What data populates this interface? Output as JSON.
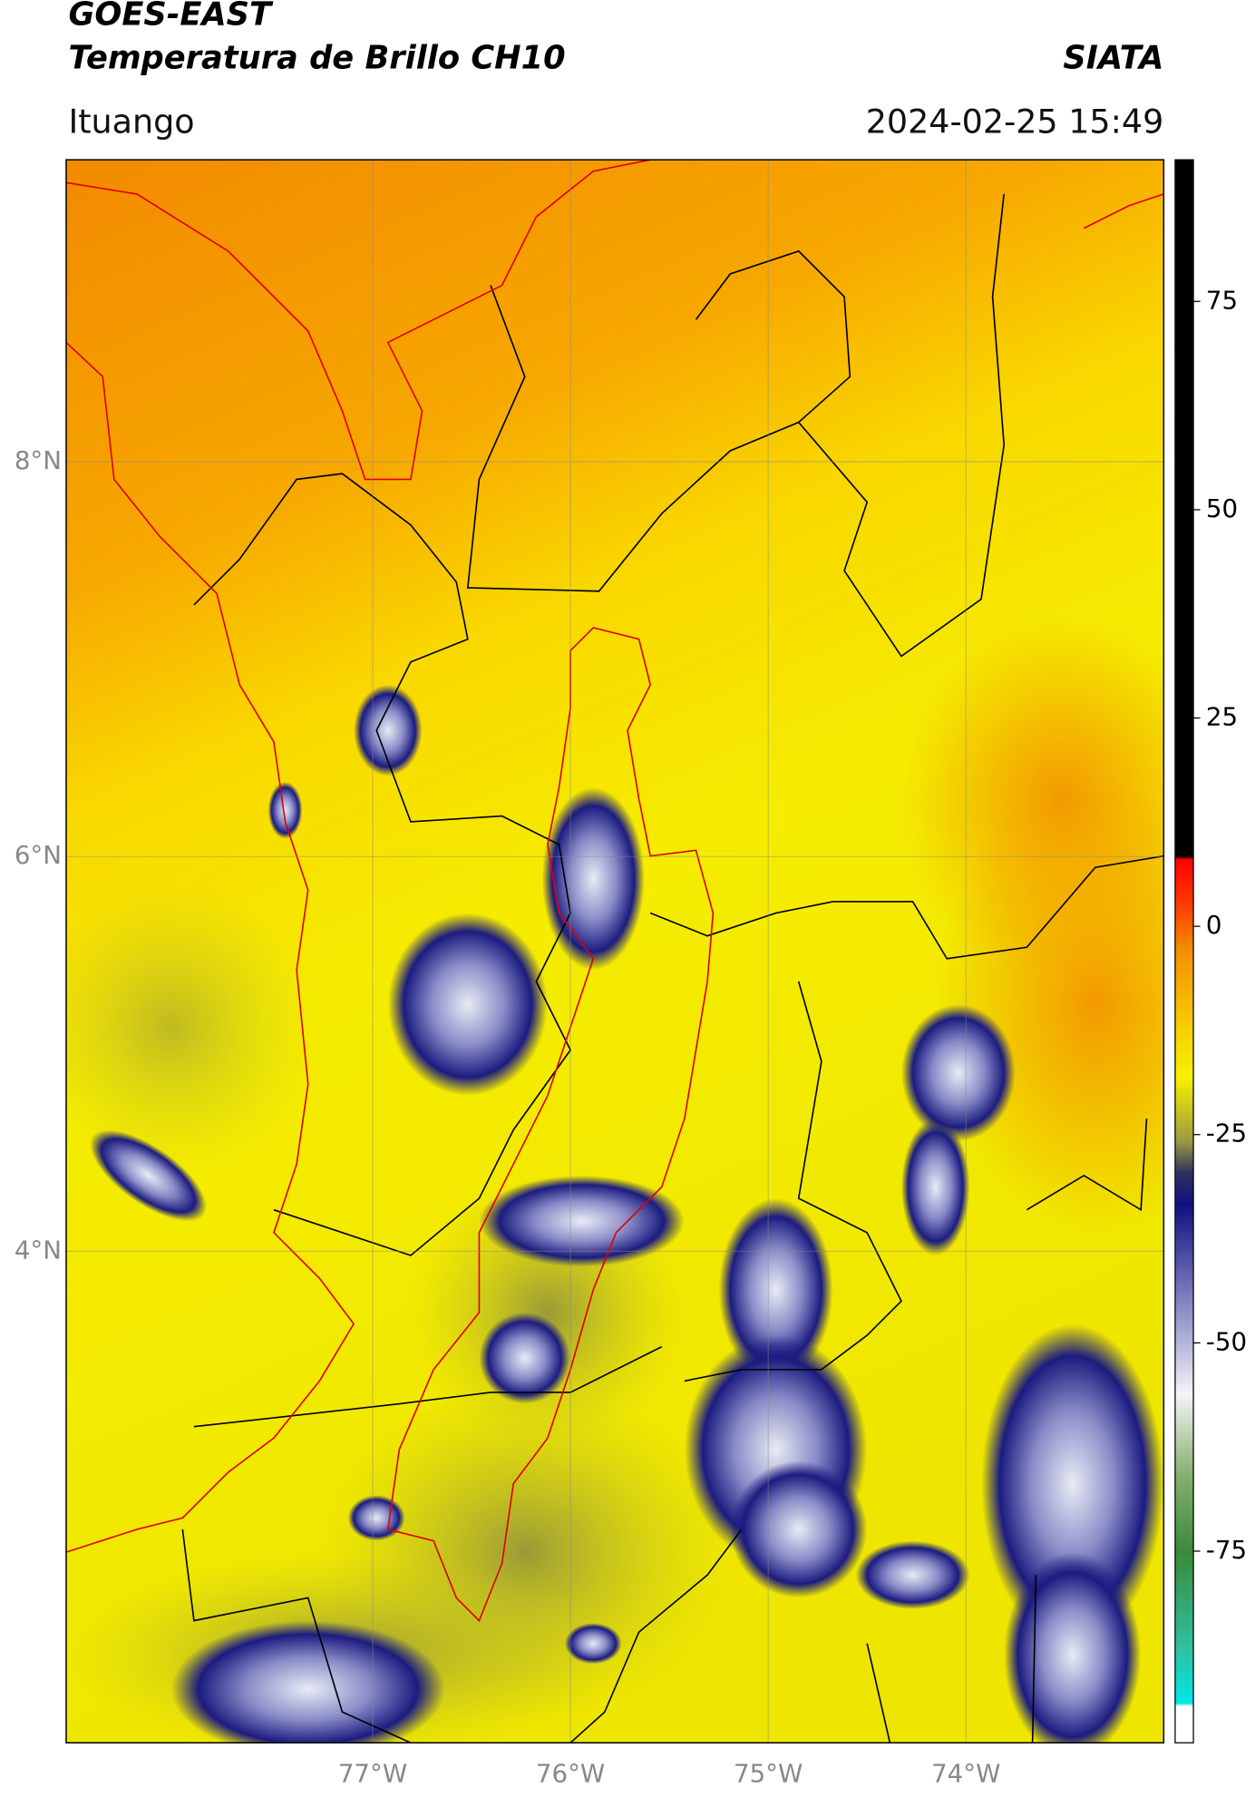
{
  "header": {
    "title": "GOES-EAST",
    "subtitle": "Temperatura de Brillo CH10",
    "brand": "SIATA",
    "region": "Ituango",
    "datetime": "2024-02-25 15:49"
  },
  "map": {
    "xlim": [
      -78.55,
      -73.0
    ],
    "ylim": [
      1.51,
      9.53
    ],
    "lat_ticks": [
      {
        "value": 8,
        "label": "8°N"
      },
      {
        "value": 6,
        "label": "6°N"
      },
      {
        "value": 4,
        "label": "4°N"
      }
    ],
    "lon_ticks": [
      {
        "value": -77,
        "label": "77°W"
      },
      {
        "value": -76,
        "label": "76°W"
      },
      {
        "value": -75,
        "label": "75°W"
      },
      {
        "value": -74,
        "label": "74°W"
      }
    ],
    "grid": true
  },
  "colorbar": {
    "lim": [
      -98,
      92
    ],
    "ticks": [
      75,
      50,
      25,
      0,
      -25,
      -50,
      -75
    ]
  }
}
